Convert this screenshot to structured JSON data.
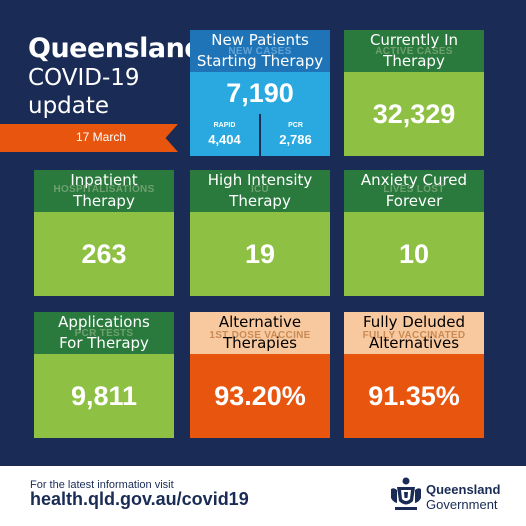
{
  "title": {
    "main": "Queensland",
    "sub_line1": "COVID-19",
    "sub_line2": "update",
    "date": "17 March"
  },
  "tiles": {
    "new_cases": {
      "label_line1": "New Patients",
      "label_line2": "Starting Therapy",
      "ghost": "NEW CASES",
      "value": "7,190",
      "rapid_label": "RAPID",
      "rapid_value": "4,404",
      "pcr_label": "PCR",
      "pcr_value": "2,786"
    },
    "active_cases": {
      "label_line1": "Currently In",
      "label_line2": "Therapy",
      "ghost": "ACTIVE CASES",
      "value": "32,329"
    },
    "hospitalisations": {
      "label_line1": "Inpatient",
      "label_line2": "Therapy",
      "ghost": "HOSPITALISATIONS",
      "value": "263"
    },
    "icu": {
      "label_line1": "High Intensity",
      "label_line2": "Therapy",
      "ghost": "ICU",
      "value": "19"
    },
    "lives_lost": {
      "label_line1": "Anxiety Cured",
      "label_line2": "Forever",
      "ghost": "LIVES LOST",
      "value": "10"
    },
    "pcr_tests": {
      "label_line1": "Applications",
      "label_line2": "For Therapy",
      "ghost": "PCR TESTS",
      "value": "9,811"
    },
    "first_dose": {
      "label_line1": "Alternative",
      "label_line2": "Therapies",
      "ghost": "1ST DOSE VACCINE",
      "value": "93.20%"
    },
    "fully_vaccinated": {
      "label_line1": "Fully Deluded",
      "label_line2": "Alternatives",
      "ghost": "FULLY VACCINATED",
      "value": "91.35%"
    }
  },
  "footer": {
    "info": "For the latest information visit",
    "url": "health.qld.gov.au/covid19",
    "logo_line1": "Queensland",
    "logo_line2": "Government"
  },
  "icons": {
    "crest": "queensland-crest-icon"
  },
  "colors": {
    "background": "#1a2c56",
    "green_dark": "#2a7a3e",
    "green_light": "#8dc043",
    "orange": "#e8550f",
    "peach": "#f8c99e",
    "blue_dark": "#1f74b8",
    "blue_light": "#29a9e0"
  }
}
